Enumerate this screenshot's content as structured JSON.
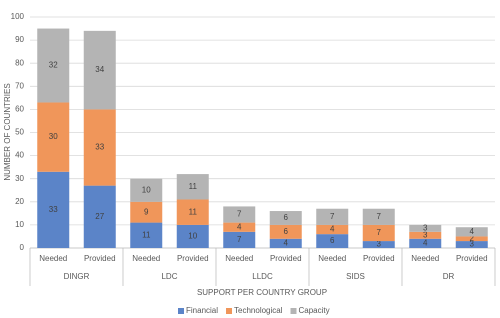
{
  "chart_data": {
    "type": "stacked_bar",
    "y_label": "NUMBER OF COUNTRIES",
    "x_label": "SUPPORT PER COUNTRY GROUP",
    "groups": [
      "DINGR",
      "LDC",
      "LLDC",
      "SIDS",
      "DR"
    ],
    "categories": [
      "Needed",
      "Provided",
      "Needed",
      "Provided",
      "Needed",
      "Provided",
      "Needed",
      "Provided",
      "Needed",
      "Provided"
    ],
    "series": [
      {
        "name": "Financial",
        "color": "#5b84c8",
        "values": [
          33,
          27,
          11,
          10,
          7,
          4,
          6,
          3,
          4,
          3
        ]
      },
      {
        "name": "Technological",
        "color": "#f0965a",
        "values": [
          30,
          33,
          9,
          11,
          4,
          6,
          4,
          7,
          3,
          2
        ]
      },
      {
        "name": "Capacity",
        "color": "#b4b4b4",
        "values": [
          32,
          34,
          10,
          11,
          7,
          6,
          7,
          7,
          3,
          4
        ]
      }
    ],
    "ylim": [
      0,
      100
    ],
    "yticks": [
      0,
      10,
      20,
      30,
      40,
      50,
      60,
      70,
      80,
      90,
      100
    ],
    "grid": true,
    "legend": "bottom"
  }
}
